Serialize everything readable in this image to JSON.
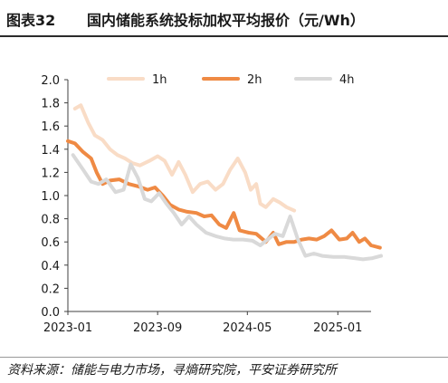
{
  "header": {
    "figure_label": "图表32",
    "title": "国内储能系统投标加权平均报价（元/Wh）"
  },
  "source": "资料来源：储能与电力市场，寻熵研究院，平安证券研究所",
  "chart_data": {
    "type": "line",
    "xlabel": "",
    "ylabel": "",
    "x_start": "2023-01",
    "x_end": "2025-04",
    "x_ticks": [
      "2023-01",
      "2023-09",
      "2024-05",
      "2025-01"
    ],
    "ylim": [
      0,
      2.0
    ],
    "y_ticks": [
      "0.0",
      "0.2",
      "0.4",
      "0.6",
      "0.8",
      "1.0",
      "1.2",
      "1.4",
      "1.6",
      "1.8",
      "2.0"
    ],
    "grid": false,
    "legend_position": "top",
    "series": [
      {
        "name": "1h",
        "color": "#f9dcc6",
        "points": [
          [
            "2023-01-20",
            1.75
          ],
          [
            "2023-02-05",
            1.78
          ],
          [
            "2023-02-25",
            1.63
          ],
          [
            "2023-03-15",
            1.52
          ],
          [
            "2023-04-05",
            1.48
          ],
          [
            "2023-04-25",
            1.4
          ],
          [
            "2023-05-15",
            1.35
          ],
          [
            "2023-06-05",
            1.32
          ],
          [
            "2023-06-25",
            1.28
          ],
          [
            "2023-07-15",
            1.26
          ],
          [
            "2023-08-10",
            1.3
          ],
          [
            "2023-09-01",
            1.34
          ],
          [
            "2023-09-20",
            1.3
          ],
          [
            "2023-10-10",
            1.18
          ],
          [
            "2023-10-28",
            1.29
          ],
          [
            "2023-11-15",
            1.18
          ],
          [
            "2023-12-05",
            1.03
          ],
          [
            "2023-12-25",
            1.1
          ],
          [
            "2024-01-15",
            1.12
          ],
          [
            "2024-02-05",
            1.05
          ],
          [
            "2024-02-25",
            1.1
          ],
          [
            "2024-03-15",
            1.22
          ],
          [
            "2024-04-05",
            1.32
          ],
          [
            "2024-04-25",
            1.2
          ],
          [
            "2024-05-10",
            1.05
          ],
          [
            "2024-05-25",
            1.1
          ],
          [
            "2024-06-05",
            0.93
          ],
          [
            "2024-06-20",
            0.9
          ],
          [
            "2024-07-10",
            0.97
          ],
          [
            "2024-07-28",
            0.94
          ],
          [
            "2024-08-15",
            0.9
          ],
          [
            "2024-09-05",
            0.87
          ]
        ]
      },
      {
        "name": "2h",
        "color": "#ef8a44",
        "points": [
          [
            "2023-01-01",
            1.47
          ],
          [
            "2023-01-20",
            1.45
          ],
          [
            "2023-02-10",
            1.38
          ],
          [
            "2023-03-05",
            1.32
          ],
          [
            "2023-03-20",
            1.2
          ],
          [
            "2023-04-05",
            1.1
          ],
          [
            "2023-04-25",
            1.13
          ],
          [
            "2023-05-20",
            1.14
          ],
          [
            "2023-06-15",
            1.1
          ],
          [
            "2023-07-10",
            1.08
          ],
          [
            "2023-08-05",
            1.05
          ],
          [
            "2023-08-25",
            1.07
          ],
          [
            "2023-09-15",
            1.0
          ],
          [
            "2023-10-05",
            0.92
          ],
          [
            "2023-10-28",
            0.88
          ],
          [
            "2023-11-20",
            0.86
          ],
          [
            "2023-12-15",
            0.85
          ],
          [
            "2024-01-05",
            0.82
          ],
          [
            "2024-01-25",
            0.83
          ],
          [
            "2024-02-15",
            0.75
          ],
          [
            "2024-03-05",
            0.72
          ],
          [
            "2024-03-25",
            0.85
          ],
          [
            "2024-04-10",
            0.7
          ],
          [
            "2024-05-05",
            0.68
          ],
          [
            "2024-05-25",
            0.67
          ],
          [
            "2024-06-20",
            0.6
          ],
          [
            "2024-07-10",
            0.68
          ],
          [
            "2024-07-25",
            0.58
          ],
          [
            "2024-08-15",
            0.6
          ],
          [
            "2024-09-05",
            0.6
          ],
          [
            "2024-09-25",
            0.62
          ],
          [
            "2024-10-15",
            0.63
          ],
          [
            "2024-11-05",
            0.62
          ],
          [
            "2024-11-25",
            0.65
          ],
          [
            "2024-12-15",
            0.7
          ],
          [
            "2025-01-05",
            0.62
          ],
          [
            "2025-01-25",
            0.63
          ],
          [
            "2025-02-10",
            0.68
          ],
          [
            "2025-02-28",
            0.6
          ],
          [
            "2025-03-15",
            0.63
          ],
          [
            "2025-04-01",
            0.57
          ],
          [
            "2025-04-25",
            0.55
          ]
        ]
      },
      {
        "name": "4h",
        "color": "#d9d9d9",
        "points": [
          [
            "2023-01-15",
            1.35
          ],
          [
            "2023-02-10",
            1.23
          ],
          [
            "2023-03-05",
            1.12
          ],
          [
            "2023-03-25",
            1.1
          ],
          [
            "2023-04-15",
            1.14
          ],
          [
            "2023-05-10",
            1.03
          ],
          [
            "2023-06-01",
            1.05
          ],
          [
            "2023-06-20",
            1.27
          ],
          [
            "2023-07-10",
            1.15
          ],
          [
            "2023-07-28",
            0.97
          ],
          [
            "2023-08-15",
            0.95
          ],
          [
            "2023-09-05",
            1.02
          ],
          [
            "2023-09-25",
            0.93
          ],
          [
            "2023-10-15",
            0.85
          ],
          [
            "2023-11-05",
            0.75
          ],
          [
            "2023-11-25",
            0.82
          ],
          [
            "2023-12-15",
            0.75
          ],
          [
            "2024-01-10",
            0.68
          ],
          [
            "2024-02-05",
            0.65
          ],
          [
            "2024-03-01",
            0.63
          ],
          [
            "2024-03-25",
            0.62
          ],
          [
            "2024-04-20",
            0.62
          ],
          [
            "2024-05-15",
            0.61
          ],
          [
            "2024-06-05",
            0.57
          ],
          [
            "2024-06-25",
            0.62
          ],
          [
            "2024-07-15",
            0.67
          ],
          [
            "2024-08-05",
            0.65
          ],
          [
            "2024-08-25",
            0.82
          ],
          [
            "2024-09-15",
            0.62
          ],
          [
            "2024-10-05",
            0.48
          ],
          [
            "2024-10-28",
            0.5
          ],
          [
            "2024-11-20",
            0.48
          ],
          [
            "2024-12-20",
            0.47
          ],
          [
            "2025-01-20",
            0.47
          ],
          [
            "2025-02-15",
            0.46
          ],
          [
            "2025-03-10",
            0.45
          ],
          [
            "2025-04-05",
            0.46
          ],
          [
            "2025-04-28",
            0.48
          ]
        ]
      }
    ]
  }
}
